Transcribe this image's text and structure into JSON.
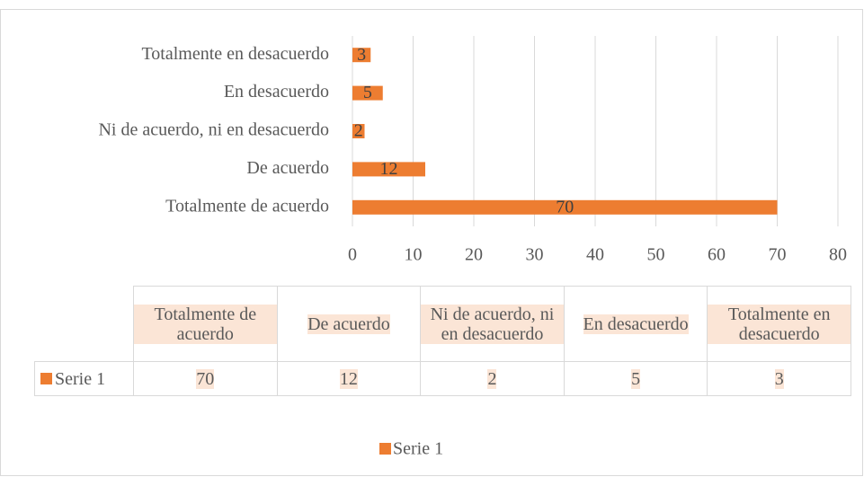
{
  "chart_data": {
    "type": "bar",
    "orientation": "horizontal",
    "categories": [
      "Totalmente de acuerdo",
      "De acuerdo",
      "Ni de acuerdo, ni en desacuerdo",
      "En desacuerdo",
      "Totalmente en desacuerdo"
    ],
    "series": [
      {
        "name": "Serie 1",
        "color": "#ed7d31",
        "values": [
          70,
          12,
          2,
          5,
          3
        ]
      }
    ],
    "xlim": [
      0,
      80
    ],
    "xticks": [
      0,
      10,
      20,
      30,
      40,
      50,
      60,
      70,
      80
    ],
    "grid": true,
    "legend": "bottom",
    "data_table": true
  }
}
